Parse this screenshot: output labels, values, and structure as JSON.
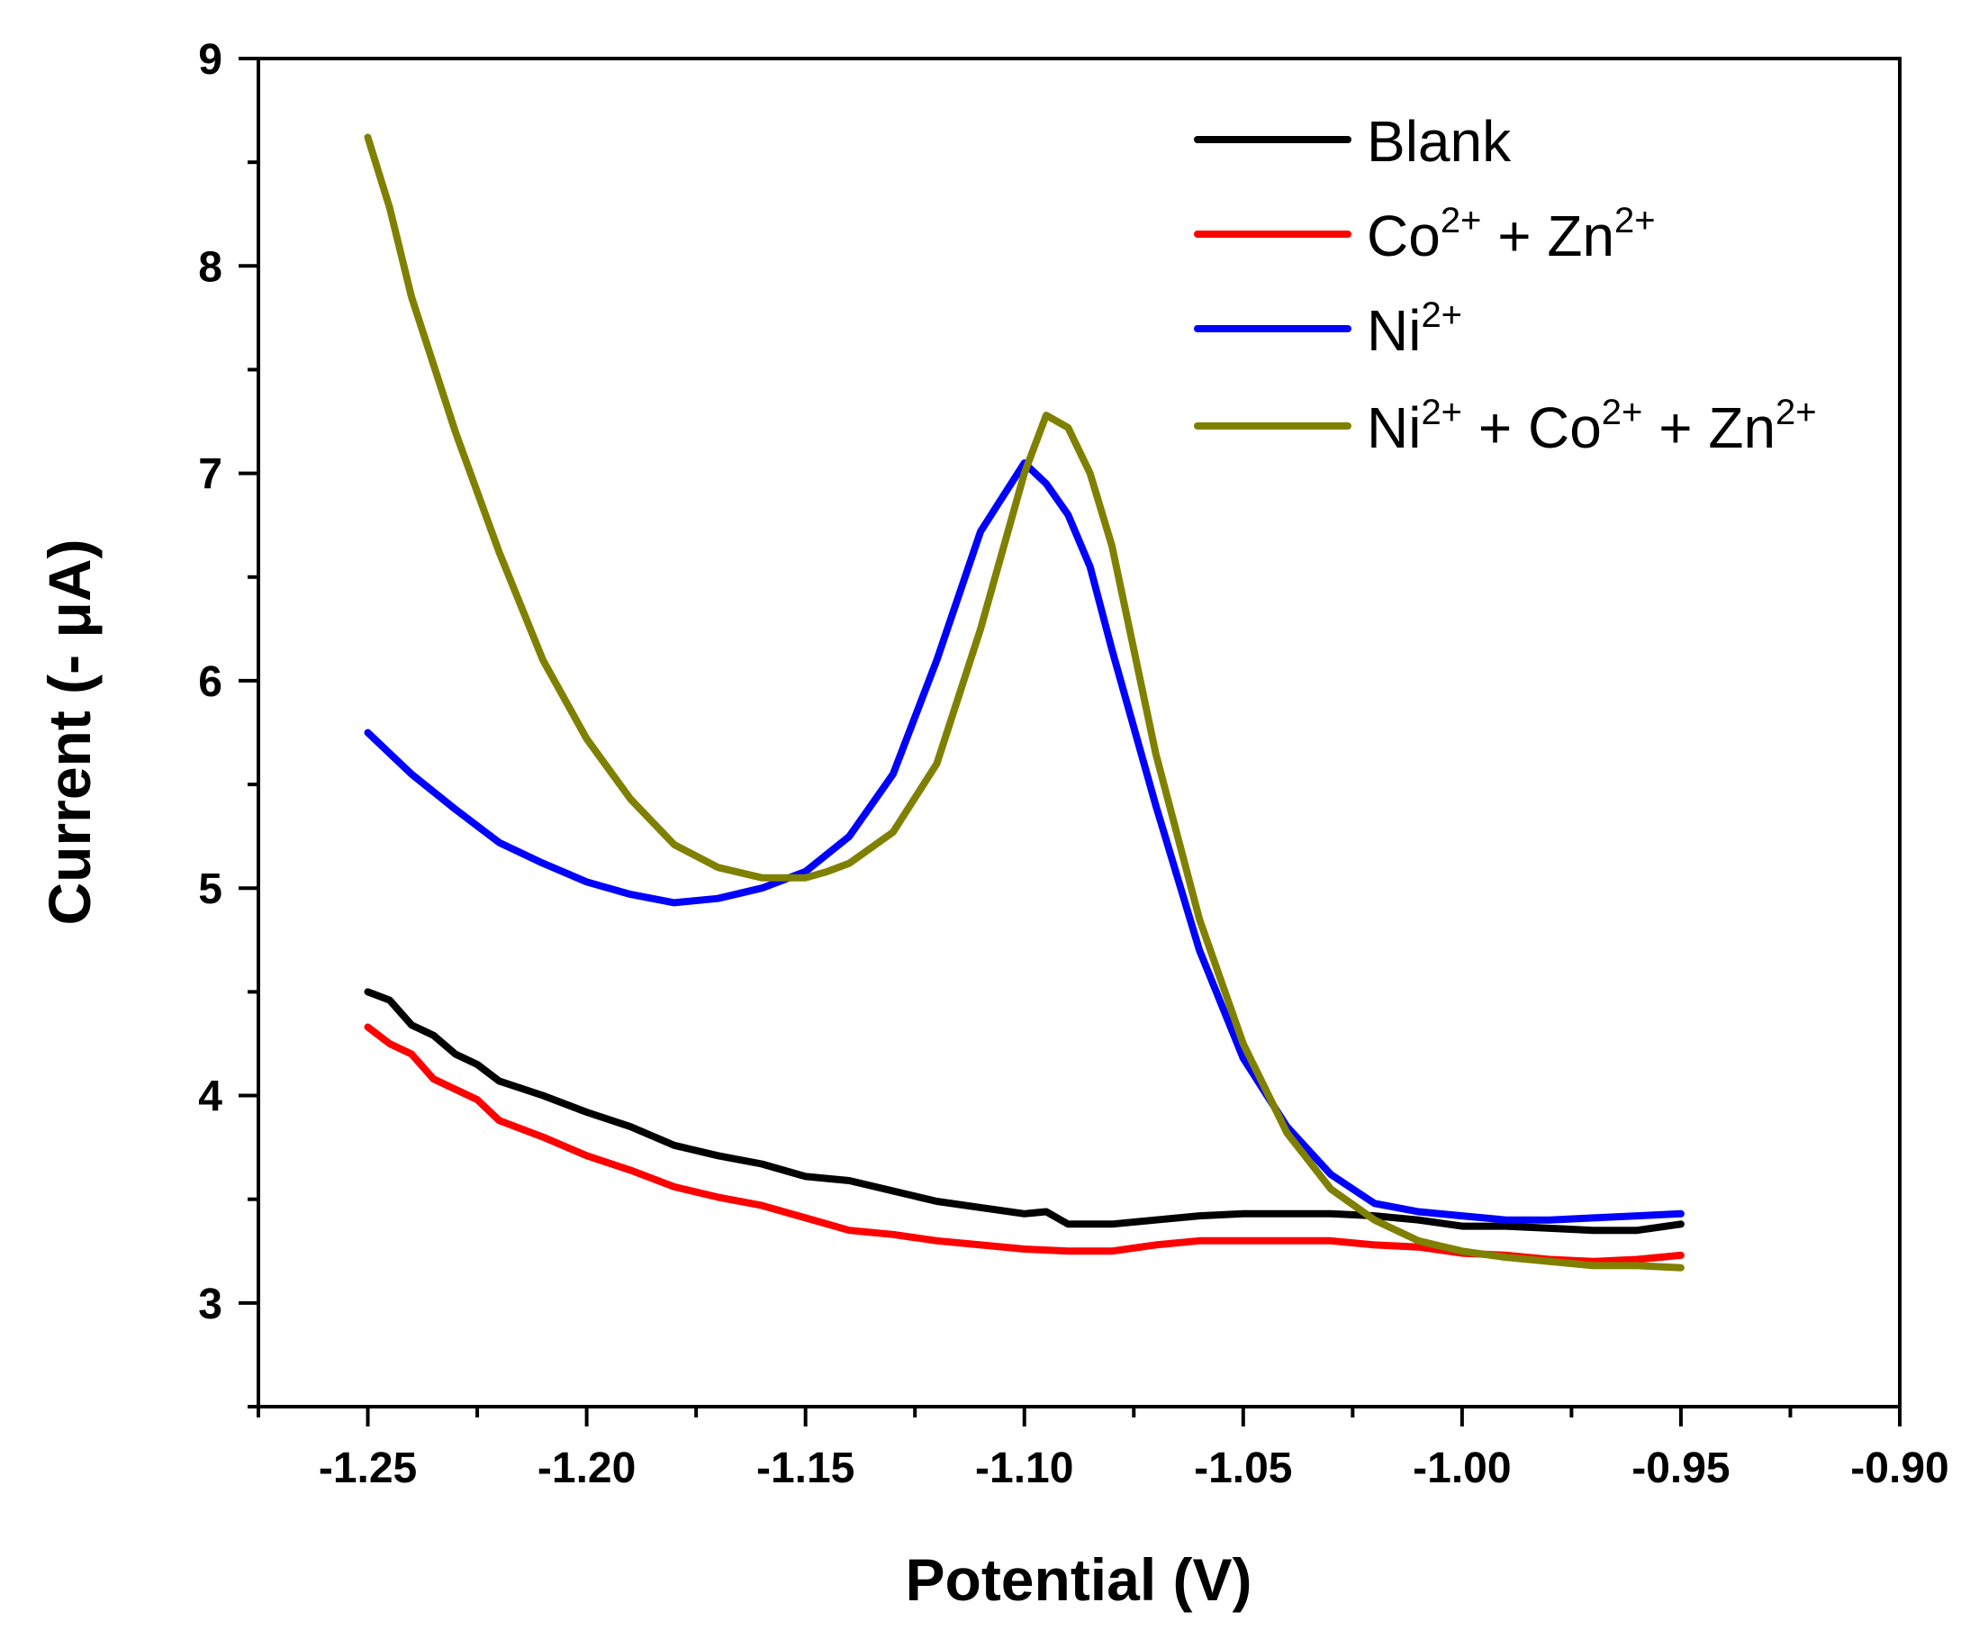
{
  "chart_data": {
    "type": "line",
    "title": "",
    "xlabel": "Potential (V)",
    "ylabel": "Current (- μA)",
    "xlim": [
      -1.275,
      -0.9
    ],
    "ylim": [
      2.5,
      9
    ],
    "xticks": [
      -1.25,
      -1.2,
      -1.15,
      -1.1,
      -1.05,
      -1.0,
      -0.95,
      -0.9
    ],
    "xtick_labels": [
      "-1.25",
      "-1.20",
      "-1.15",
      "-1.10",
      "-1.05",
      "-1.00",
      "-0.95",
      "-0.90"
    ],
    "yticks": [
      3,
      4,
      5,
      6,
      7,
      8,
      9
    ],
    "ytick_labels": [
      "3",
      "4",
      "5",
      "6",
      "7",
      "8",
      "9"
    ],
    "grid": false,
    "legend_position": "top-right",
    "series": [
      {
        "name": "Blank",
        "label_base": "Blank",
        "color": "#000000",
        "x": [
          -1.25,
          -1.245,
          -1.24,
          -1.235,
          -1.23,
          -1.225,
          -1.22,
          -1.21,
          -1.2,
          -1.19,
          -1.18,
          -1.17,
          -1.16,
          -1.15,
          -1.14,
          -1.13,
          -1.12,
          -1.11,
          -1.1,
          -1.095,
          -1.09,
          -1.08,
          -1.07,
          -1.06,
          -1.05,
          -1.04,
          -1.03,
          -1.02,
          -1.01,
          -1.0,
          -0.99,
          -0.98,
          -0.97,
          -0.96,
          -0.95
        ],
        "y": [
          4.5,
          4.46,
          4.34,
          4.29,
          4.2,
          4.15,
          4.07,
          4.0,
          3.92,
          3.85,
          3.76,
          3.71,
          3.67,
          3.61,
          3.59,
          3.54,
          3.49,
          3.46,
          3.43,
          3.44,
          3.38,
          3.38,
          3.4,
          3.42,
          3.43,
          3.43,
          3.43,
          3.42,
          3.4,
          3.37,
          3.37,
          3.36,
          3.35,
          3.35,
          3.38
        ]
      },
      {
        "name": "Co2+ + Zn2+",
        "label_base": "Co|2+| + Zn|2+",
        "color": "#ff0000",
        "x": [
          -1.25,
          -1.245,
          -1.24,
          -1.235,
          -1.23,
          -1.225,
          -1.22,
          -1.21,
          -1.2,
          -1.19,
          -1.18,
          -1.17,
          -1.16,
          -1.15,
          -1.14,
          -1.13,
          -1.12,
          -1.11,
          -1.1,
          -1.09,
          -1.08,
          -1.07,
          -1.06,
          -1.05,
          -1.04,
          -1.03,
          -1.02,
          -1.01,
          -1.0,
          -0.99,
          -0.98,
          -0.97,
          -0.96,
          -0.95
        ],
        "y": [
          4.33,
          4.25,
          4.2,
          4.08,
          4.03,
          3.98,
          3.88,
          3.8,
          3.71,
          3.64,
          3.56,
          3.51,
          3.47,
          3.41,
          3.35,
          3.33,
          3.3,
          3.28,
          3.26,
          3.25,
          3.25,
          3.28,
          3.3,
          3.3,
          3.3,
          3.3,
          3.28,
          3.27,
          3.24,
          3.23,
          3.21,
          3.2,
          3.21,
          3.23
        ]
      },
      {
        "name": "Ni2+",
        "label_base": "Ni|2+",
        "color": "#0000ff",
        "x": [
          -1.25,
          -1.24,
          -1.23,
          -1.22,
          -1.21,
          -1.2,
          -1.19,
          -1.18,
          -1.17,
          -1.16,
          -1.15,
          -1.14,
          -1.13,
          -1.12,
          -1.11,
          -1.1,
          -1.095,
          -1.09,
          -1.085,
          -1.08,
          -1.07,
          -1.06,
          -1.05,
          -1.04,
          -1.03,
          -1.02,
          -1.01,
          -1.0,
          -0.99,
          -0.98,
          -0.97,
          -0.96,
          -0.95
        ],
        "y": [
          5.75,
          5.55,
          5.38,
          5.22,
          5.12,
          5.03,
          4.97,
          4.93,
          4.95,
          5.0,
          5.08,
          5.25,
          5.55,
          6.1,
          6.72,
          7.05,
          6.95,
          6.8,
          6.55,
          6.15,
          5.4,
          4.7,
          4.18,
          3.85,
          3.62,
          3.48,
          3.44,
          3.42,
          3.4,
          3.4,
          3.41,
          3.42,
          3.43
        ]
      },
      {
        "name": "Ni2+ + Co2+ + Zn2+",
        "label_base": "Ni|2+| + Co|2+| + Zn|2+",
        "color": "#808000",
        "x": [
          -1.25,
          -1.245,
          -1.24,
          -1.23,
          -1.22,
          -1.21,
          -1.2,
          -1.19,
          -1.18,
          -1.17,
          -1.16,
          -1.15,
          -1.145,
          -1.14,
          -1.13,
          -1.12,
          -1.11,
          -1.1,
          -1.095,
          -1.09,
          -1.085,
          -1.08,
          -1.07,
          -1.06,
          -1.05,
          -1.04,
          -1.03,
          -1.02,
          -1.01,
          -1.0,
          -0.99,
          -0.98,
          -0.97,
          -0.96,
          -0.95
        ],
        "y": [
          8.62,
          8.28,
          7.85,
          7.2,
          6.62,
          6.1,
          5.72,
          5.43,
          5.21,
          5.1,
          5.05,
          5.05,
          5.08,
          5.12,
          5.27,
          5.6,
          6.25,
          7.0,
          7.28,
          7.22,
          7.0,
          6.65,
          5.65,
          4.85,
          4.25,
          3.82,
          3.55,
          3.4,
          3.3,
          3.25,
          3.22,
          3.2,
          3.18,
          3.18,
          3.17
        ]
      }
    ]
  }
}
